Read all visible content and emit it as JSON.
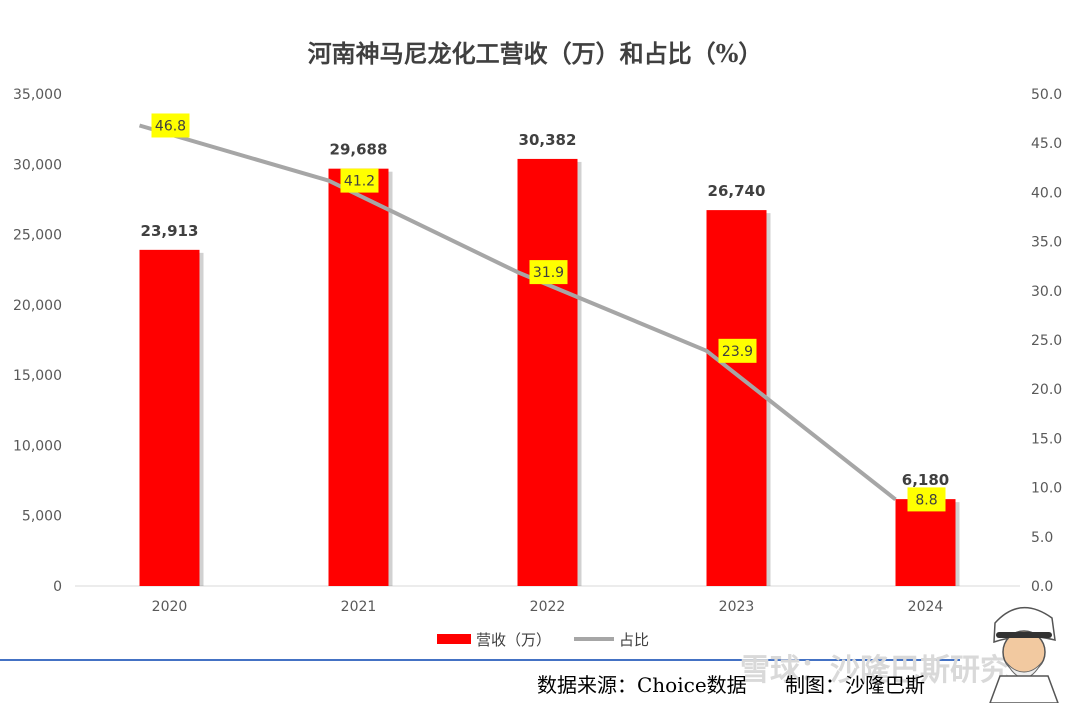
{
  "chart_data": {
    "type": "bar",
    "title": "河南神马尼龙化工营收（万）和占比（%）",
    "categories": [
      "2020",
      "2021",
      "2022",
      "2023",
      "2024"
    ],
    "series": [
      {
        "name": "营收（万）",
        "type": "bar",
        "axis": "left",
        "values": [
          23913,
          29688,
          30382,
          26740,
          6180
        ],
        "labels": [
          "23,913",
          "29,688",
          "30,382",
          "26,740",
          "6,180"
        ]
      },
      {
        "name": "占比",
        "type": "line",
        "axis": "right",
        "values": [
          46.8,
          41.2,
          31.9,
          23.9,
          8.8
        ],
        "labels": [
          "46.8",
          "41.2",
          "31.9",
          "23.9",
          "8.8"
        ]
      }
    ],
    "y_left": {
      "min": 0,
      "max": 35000,
      "step": 5000,
      "ticks": [
        "0",
        "5,000",
        "10,000",
        "15,000",
        "20,000",
        "25,000",
        "30,000",
        "35,000"
      ]
    },
    "y_right": {
      "min": 0,
      "max": 50,
      "step": 5,
      "ticks": [
        "0.0",
        "5.0",
        "10.0",
        "15.0",
        "20.0",
        "25.0",
        "30.0",
        "35.0",
        "40.0",
        "45.0",
        "50.0"
      ]
    },
    "legend_position": "bottom",
    "grid": false,
    "colors": {
      "bar": "#ff0000",
      "line": "#a6a6a6",
      "label_bg": "#ffff00",
      "divider": "#4472c4"
    }
  },
  "footer": {
    "source": "数据来源：Choice数据",
    "author": "制图：沙隆巴斯",
    "watermark": "雪球：沙隆巴斯研究"
  }
}
